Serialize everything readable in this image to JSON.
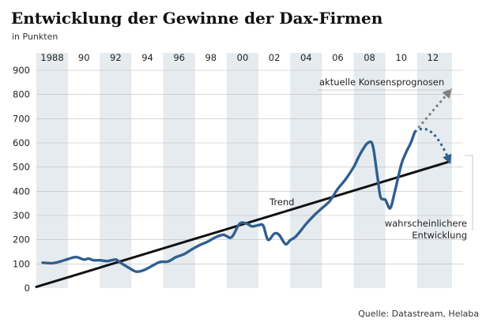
{
  "chart_data": {
    "type": "line",
    "title": "Entwicklung der Gewinne der Dax-Firmen",
    "subtitle": "in Punkten",
    "source": "Quelle: Datastream, Helaba",
    "xlim": [
      1987,
      2013.9
    ],
    "ylim": [
      0,
      900
    ],
    "yticks": [
      0,
      100,
      200,
      300,
      400,
      500,
      600,
      700,
      800,
      900
    ],
    "xticks": [
      {
        "x": 1988,
        "label": "1988"
      },
      {
        "x": 1990,
        "label": "90"
      },
      {
        "x": 1992,
        "label": "92"
      },
      {
        "x": 1994,
        "label": "94"
      },
      {
        "x": 1996,
        "label": "96"
      },
      {
        "x": 1998,
        "label": "98"
      },
      {
        "x": 2000,
        "label": "00"
      },
      {
        "x": 2002,
        "label": "02"
      },
      {
        "x": 2004,
        "label": "04"
      },
      {
        "x": 2006,
        "label": "06"
      },
      {
        "x": 2008,
        "label": "08"
      },
      {
        "x": 2010,
        "label": "10"
      },
      {
        "x": 2012,
        "label": "12"
      }
    ],
    "bands": [
      [
        1987,
        1989
      ],
      [
        1991,
        1993
      ],
      [
        1995,
        1997
      ],
      [
        1999,
        2001
      ],
      [
        2003,
        2005
      ],
      [
        2007,
        2009
      ],
      [
        2011,
        2013.2
      ]
    ],
    "series": [
      {
        "x": [
          1987.4,
          1988.0,
          1988.5,
          1989.0,
          1989.5,
          1990.0,
          1990.3,
          1990.6,
          1991.0,
          1991.5,
          1992.0,
          1992.3,
          1992.8,
          1993.3,
          1993.8,
          1994.3,
          1994.8,
          1995.3,
          1995.8,
          1996.3,
          1996.8,
          1997.3,
          1997.8,
          1998.3,
          1998.8,
          1999.3,
          1999.8,
          2000.2,
          2000.6,
          2001.0,
          2001.3,
          2001.6,
          2002.0,
          2002.3,
          2002.7,
          2003.0,
          2003.3,
          2003.6,
          2004.0,
          2004.5,
          2005.0,
          2005.5,
          2006.0,
          2006.5,
          2007.0,
          2007.3,
          2007.6,
          2007.9,
          2008.2,
          2008.5,
          2008.7,
          2009.0,
          2009.3,
          2009.6,
          2010.0,
          2010.3,
          2010.6,
          2010.85
        ],
        "values": [
          105,
          103,
          110,
          120,
          128,
          118,
          122,
          115,
          115,
          112,
          118,
          105,
          85,
          68,
          75,
          92,
          108,
          110,
          128,
          140,
          160,
          178,
          192,
          210,
          220,
          210,
          265,
          268,
          255,
          260,
          258,
          200,
          225,
          220,
          182,
          198,
          210,
          232,
          265,
          300,
          330,
          360,
          410,
          450,
          500,
          540,
          575,
          600,
          590,
          460,
          375,
          365,
          330,
          400,
          510,
          560,
          600,
          645
        ]
      }
    ],
    "trend": {
      "label": "Trend",
      "x": [
        1987.0,
        2013.0
      ],
      "values": [
        5,
        522
      ]
    },
    "projections": [
      {
        "label": "aktuelle Konsensprognosen",
        "x": [
          2010.85,
          2013.0
        ],
        "values": [
          645,
          810
        ]
      },
      {
        "label": "wahrscheinlichere Entwicklung",
        "label_lines": [
          "wahrscheinlichere",
          "Entwicklung"
        ],
        "x": [
          2010.85,
          2011.9,
          2013.0
        ],
        "values": [
          645,
          660,
          530
        ]
      }
    ]
  },
  "colors": {
    "line": "#2f5f8f",
    "band": "#e6ebef",
    "trend": "#111111",
    "consensus_arrow": "#7f7f7f",
    "likely_arrow": "#2f5f8f",
    "grid": "#bdbdbd"
  }
}
